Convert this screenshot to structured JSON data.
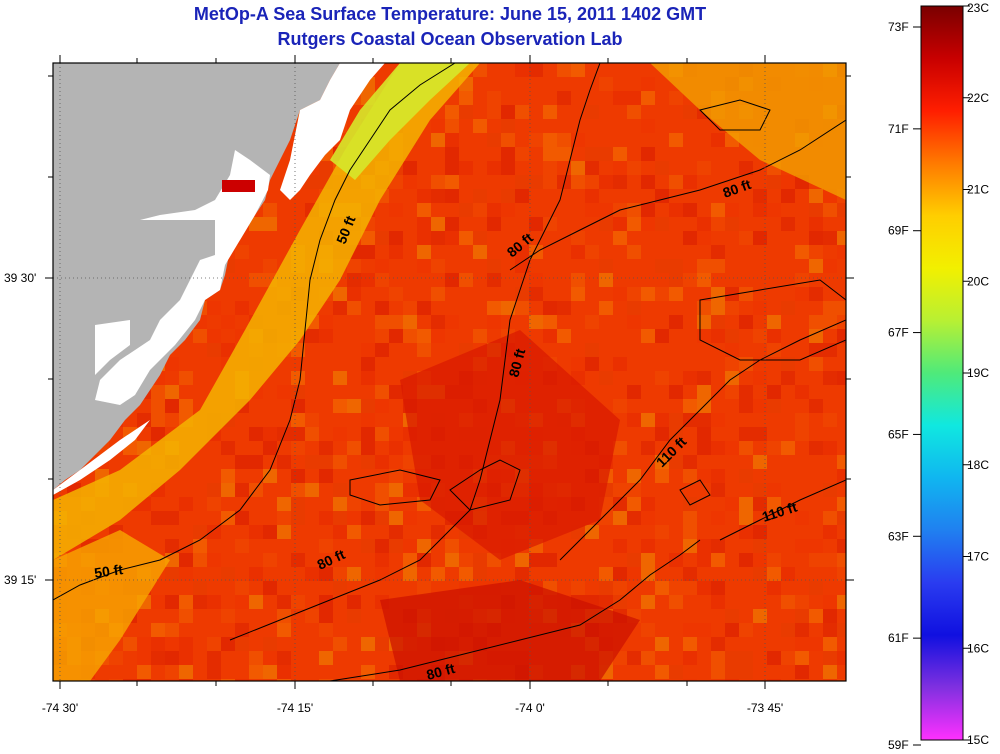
{
  "header": {
    "title": "MetOp-A Sea Surface Temperature:  June 15, 2011 1402 GMT",
    "subtitle": "Rutgers Coastal Ocean Observation Lab"
  },
  "map": {
    "x_ticks": [
      "-74 30'",
      "-74 15'",
      "-74 0'",
      "-73 45'"
    ],
    "y_ticks": [
      "39 30'",
      "39 15'"
    ],
    "contour_labels": [
      "50 ft",
      "50 ft",
      "80 ft",
      "80 ft",
      "80 ft",
      "80 ft",
      "80 ft",
      "110 ft",
      "110 ft"
    ],
    "colors": {
      "land": "#b4b4b4",
      "no_data": "#ffffff",
      "marker": "#cc0000"
    }
  },
  "colorbar": {
    "fahrenheit_labels": [
      "73F",
      "71F",
      "69F",
      "67F",
      "65F",
      "63F",
      "61F",
      "59F"
    ],
    "celsius_labels": [
      "23C",
      "22C",
      "21C",
      "20C",
      "19C",
      "18C",
      "17C",
      "16C",
      "15C"
    ],
    "stops": [
      "#7a0000",
      "#c80000",
      "#ff1e00",
      "#ff7a00",
      "#ffce00",
      "#f2f000",
      "#b8f033",
      "#4fea7a",
      "#10e8e0",
      "#10b6f0",
      "#2080f0",
      "#2a3cf0",
      "#1010e0",
      "#8030e0",
      "#ff30ff"
    ]
  }
}
